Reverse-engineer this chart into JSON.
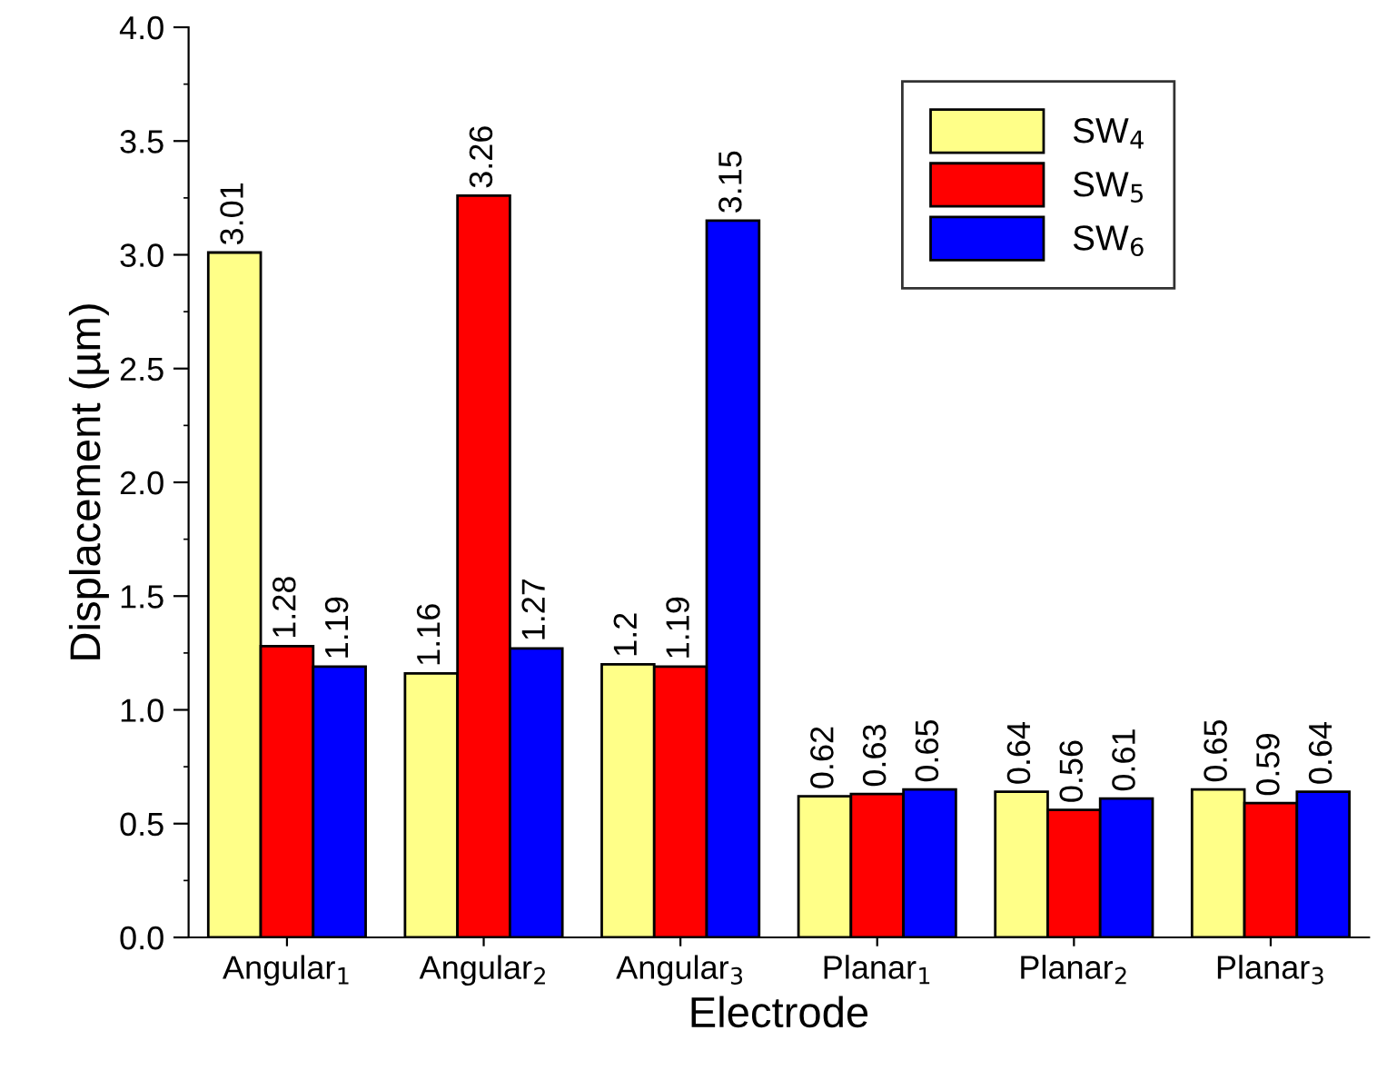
{
  "chart_data": {
    "type": "bar",
    "xlabel": "Electrode",
    "ylabel": "Displacement (µm)",
    "categories": [
      "Angular$_{1}$",
      "Angular$_{2}$",
      "Angular$_{3}$",
      "Planar$_{1}$",
      "Planar$_{2}$",
      "Planar$_{3}$"
    ],
    "series": [
      {
        "name": "SW$_{4}$",
        "color": "#ffff88",
        "values": [
          3.01,
          1.16,
          1.2,
          0.62,
          0.64,
          0.65
        ]
      },
      {
        "name": "SW$_{5}$",
        "color": "#ff0000",
        "values": [
          1.28,
          3.26,
          1.19,
          0.63,
          0.56,
          0.59
        ]
      },
      {
        "name": "SW$_{6}$",
        "color": "#0000ff",
        "values": [
          1.19,
          1.27,
          3.15,
          0.65,
          0.61,
          0.64
        ]
      }
    ],
    "ylim": [
      0,
      4
    ],
    "yticks": [
      {
        "value": 0,
        "label": "0.0"
      },
      {
        "value": 0.5,
        "label": "0.5"
      },
      {
        "value": 1,
        "label": "1.0"
      },
      {
        "value": 1.5,
        "label": "1.5"
      },
      {
        "value": 2,
        "label": "2.0"
      },
      {
        "value": 2.5,
        "label": "2.5"
      },
      {
        "value": 3,
        "label": "3.0"
      },
      {
        "value": 3.5,
        "label": "3.5"
      },
      {
        "value": 4,
        "label": "4.0"
      }
    ],
    "data_labels": true,
    "legend": "top right",
    "grid": false
  }
}
